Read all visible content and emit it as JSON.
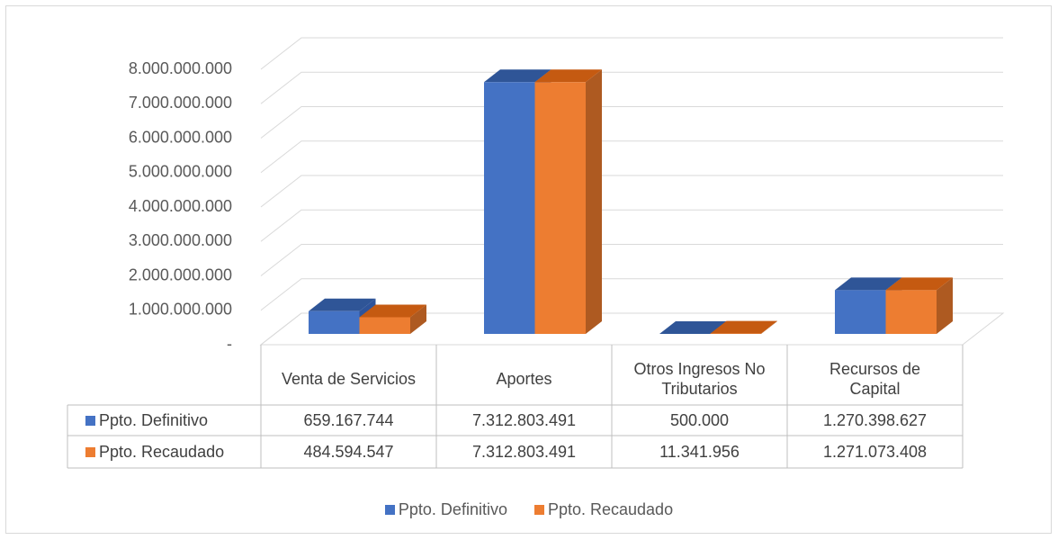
{
  "chart_data": {
    "type": "bar3d",
    "categories": [
      "Venta de Servicios",
      "Aportes",
      "Otros Ingresos No Tributarios",
      "Recursos de Capital"
    ],
    "series": [
      {
        "name": "Ppto. Definitivo",
        "color": "#4472c4",
        "top_color": "#2f5597",
        "side_color": "#2e539a",
        "values": [
          659167744,
          7312803491,
          500000,
          1270398627
        ],
        "value_labels": [
          "659.167.744",
          "7.312.803.491",
          "500.000",
          "1.270.398.627"
        ]
      },
      {
        "name": "Ppto. Recaudado",
        "color": "#ed7d31",
        "top_color": "#c55a11",
        "side_color": "#ae5a21",
        "values": [
          484594547,
          7312803491,
          11341956,
          1271073408
        ],
        "value_labels": [
          "484.594.547",
          "7.312.803.491",
          "11.341.956",
          "1.271.073.408"
        ]
      }
    ],
    "ylim": [
      0,
      8000000000
    ],
    "yticks": [
      {
        "value": 0,
        "label": "-"
      },
      {
        "value": 1000000000,
        "label": "1.000.000.000"
      },
      {
        "value": 2000000000,
        "label": "2.000.000.000"
      },
      {
        "value": 3000000000,
        "label": "3.000.000.000"
      },
      {
        "value": 4000000000,
        "label": "4.000.000.000"
      },
      {
        "value": 5000000000,
        "label": "5.000.000.000"
      },
      {
        "value": 6000000000,
        "label": "6.000.000.000"
      },
      {
        "value": 7000000000,
        "label": "7.000.000.000"
      },
      {
        "value": 8000000000,
        "label": "8.000.000.000"
      }
    ],
    "grid": true,
    "legend": "bottom",
    "data_table": true
  }
}
